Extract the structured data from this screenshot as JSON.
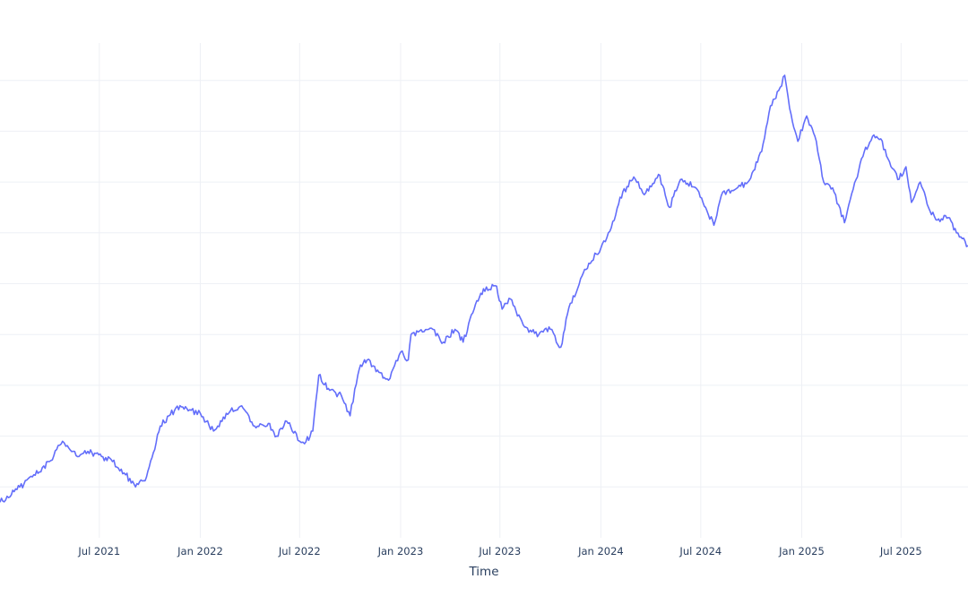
{
  "chart_data": {
    "type": "line",
    "title": "",
    "xlabel": "Time",
    "ylabel": "",
    "x_axis_kind": "date",
    "xlim": [
      "2021-01-01",
      "2025-10-31"
    ],
    "ylim": [
      0,
      100
    ],
    "y_tick_labels_visible": false,
    "y_gridline_values": [
      10,
      20,
      30,
      40,
      50,
      60,
      70,
      80,
      90
    ],
    "x_ticks": [
      {
        "date": "2021-07-01",
        "label": "Jul 2021"
      },
      {
        "date": "2022-01-01",
        "label": "Jan 2022"
      },
      {
        "date": "2022-07-01",
        "label": "Jul 2022"
      },
      {
        "date": "2023-01-01",
        "label": "Jan 2023"
      },
      {
        "date": "2023-07-01",
        "label": "Jul 2023"
      },
      {
        "date": "2024-01-01",
        "label": "Jan 2024"
      },
      {
        "date": "2024-07-01",
        "label": "Jul 2024"
      },
      {
        "date": "2025-01-01",
        "label": "Jan 2025"
      },
      {
        "date": "2025-07-01",
        "label": "Jul 2025"
      }
    ],
    "grid": true,
    "legend": "none",
    "series": [
      {
        "color": "#636efa",
        "x": [
          "2021-01-01",
          "2021-02-01",
          "2021-03-01",
          "2021-04-01",
          "2021-04-25",
          "2021-05-01",
          "2021-05-25",
          "2021-06-10",
          "2021-07-05",
          "2021-07-25",
          "2021-08-10",
          "2021-09-05",
          "2021-09-25",
          "2021-10-20",
          "2021-11-05",
          "2021-11-25",
          "2021-12-10",
          "2022-01-01",
          "2022-01-25",
          "2022-02-25",
          "2022-03-20",
          "2022-04-10",
          "2022-05-05",
          "2022-05-20",
          "2022-06-05",
          "2022-06-25",
          "2022-07-01",
          "2022-07-10",
          "2022-07-25",
          "2022-08-05",
          "2022-08-25",
          "2022-09-15",
          "2022-10-01",
          "2022-10-15",
          "2022-10-20",
          "2022-11-01",
          "2022-11-20",
          "2022-12-10",
          "2023-01-01",
          "2023-01-15",
          "2023-01-20",
          "2023-02-10",
          "2023-03-01",
          "2023-03-20",
          "2023-04-10",
          "2023-04-25",
          "2023-05-15",
          "2023-06-01",
          "2023-06-25",
          "2023-07-05",
          "2023-07-20",
          "2023-08-15",
          "2023-09-10",
          "2023-10-01",
          "2023-10-20",
          "2023-11-01",
          "2023-11-25",
          "2023-12-10",
          "2024-01-01",
          "2024-01-20",
          "2024-02-05",
          "2024-03-01",
          "2024-03-20",
          "2024-04-15",
          "2024-05-05",
          "2024-05-25",
          "2024-06-20",
          "2024-07-05",
          "2024-07-25",
          "2024-08-10",
          "2024-09-01",
          "2024-09-25",
          "2024-10-20",
          "2024-11-05",
          "2024-11-20",
          "2024-12-01",
          "2024-12-10",
          "2024-12-25",
          "2025-01-10",
          "2025-01-25",
          "2025-02-10",
          "2025-03-01",
          "2025-03-20",
          "2025-04-10",
          "2025-04-25",
          "2025-05-10",
          "2025-05-25",
          "2025-06-10",
          "2025-06-25",
          "2025-07-10",
          "2025-07-20",
          "2025-08-05",
          "2025-08-20",
          "2025-09-05",
          "2025-09-25",
          "2025-10-10",
          "2025-10-31"
        ],
        "values": [
          7.0,
          9.5,
          12.0,
          15.0,
          19.0,
          18.0,
          16.0,
          17.0,
          16.0,
          15.0,
          13.5,
          10.0,
          12.0,
          22.0,
          24.0,
          26.0,
          25.0,
          24.5,
          21.0,
          25.0,
          25.5,
          22.0,
          22.5,
          20.0,
          23.0,
          20.5,
          19.0,
          18.5,
          21.0,
          32.0,
          29.0,
          28.0,
          24.0,
          32.0,
          34.0,
          35.0,
          33.0,
          31.0,
          36.5,
          35.0,
          40.0,
          40.5,
          41.0,
          38.5,
          41.0,
          38.5,
          45.0,
          49.0,
          49.5,
          45.0,
          47.0,
          41.5,
          40.0,
          41.0,
          37.5,
          44.0,
          51.0,
          54.0,
          57.0,
          61.0,
          67.0,
          71.0,
          67.5,
          71.5,
          65.0,
          70.5,
          69.0,
          66.0,
          61.5,
          68.0,
          68.5,
          70.0,
          76.0,
          85.0,
          88.0,
          91.0,
          84.5,
          78.0,
          83.0,
          79.0,
          70.0,
          68.0,
          62.0,
          70.5,
          76.0,
          79.0,
          78.5,
          74.0,
          70.5,
          73.0,
          66.0,
          70.0,
          65.0,
          62.5,
          63.0,
          60.0,
          57.5
        ]
      }
    ]
  }
}
